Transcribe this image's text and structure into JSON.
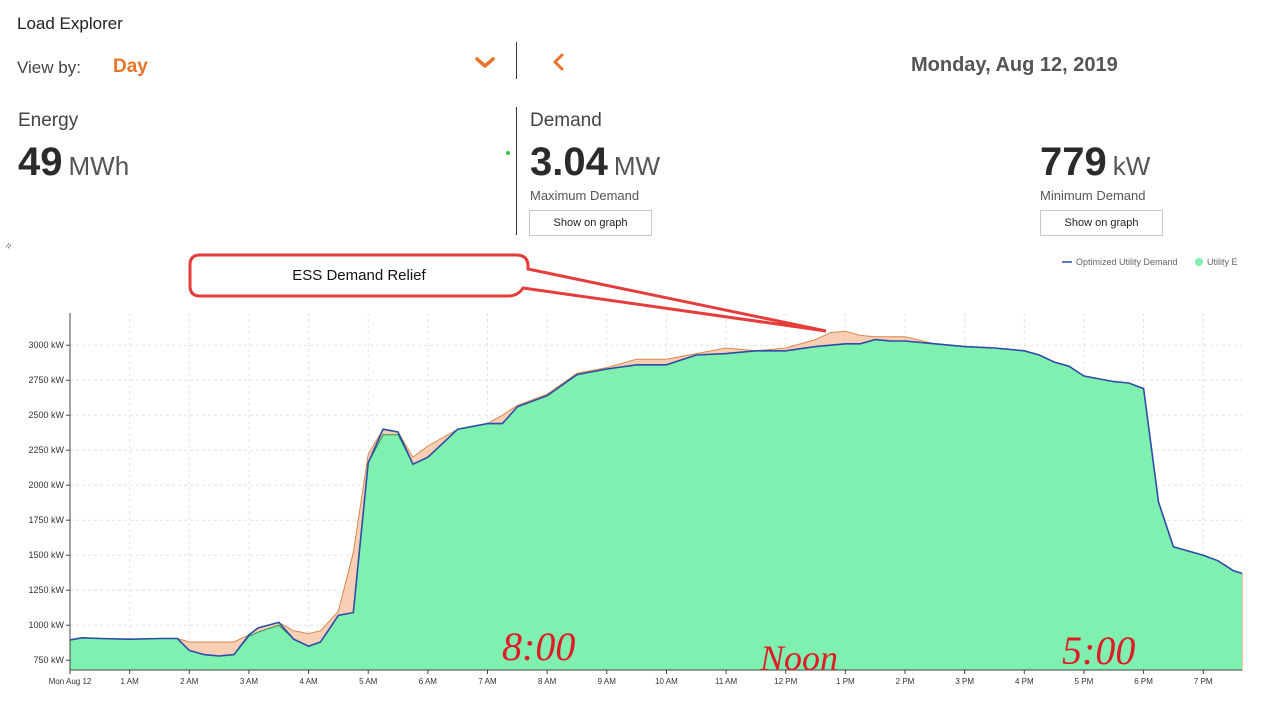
{
  "header": {
    "title": "Load Explorer",
    "view_by_label": "View by:",
    "view_by_value": "Day",
    "date": "Monday, Aug 12, 2019"
  },
  "energy": {
    "label": "Energy",
    "value": "49",
    "unit": "MWh"
  },
  "demand": {
    "label": "Demand",
    "max_value": "3.04",
    "max_unit": "MW",
    "max_label": "Maximum Demand",
    "min_value": "779",
    "min_unit": "kW",
    "min_label": "Minimum Demand",
    "show_on_graph_label": "Show on graph"
  },
  "side_glyph": "≈",
  "colors": {
    "accent": "#e8742a",
    "utility_fill": "#80f0b0",
    "utility_line": "#2f8f4f",
    "optimized_line": "#2d4ea8",
    "relief_fill": "#f8cfb4",
    "relief_line": "#d98850",
    "callout_border": "#e53c3c"
  },
  "chart_data": {
    "type": "area",
    "title": "",
    "xlabel": "",
    "ylabel": "",
    "y_unit": "kW",
    "ylim": [
      680,
      3230
    ],
    "y_ticks": [
      750,
      1000,
      1250,
      1500,
      1750,
      2000,
      2250,
      2500,
      2750,
      3000
    ],
    "y_tick_labels": [
      "750 kW",
      "1000 kW",
      "1250 kW",
      "1500 kW",
      "1750 kW",
      "2000 kW",
      "2250 kW",
      "2500 kW",
      "2750 kW",
      "3000 kW"
    ],
    "x_hours_range": [
      0,
      19.65
    ],
    "x_ticks": [
      0,
      1,
      2,
      3,
      4,
      5,
      6,
      7,
      8,
      9,
      10,
      11,
      12,
      13,
      14,
      15,
      16,
      17,
      18,
      19
    ],
    "x_tick_labels": [
      "Mon Aug 12",
      "1 AM",
      "2 AM",
      "3 AM",
      "4 AM",
      "5 AM",
      "6 AM",
      "7 AM",
      "8 AM",
      "9 AM",
      "10 AM",
      "11 AM",
      "12 PM",
      "1 PM",
      "2 PM",
      "3 PM",
      "4 PM",
      "5 PM",
      "6 PM",
      "7 PM"
    ],
    "grid": true,
    "legend_position": "top-right",
    "legend": [
      "Optimized Utility Demand",
      "Utility E"
    ],
    "series": [
      {
        "name": "Utility E",
        "x": [
          0,
          0.2,
          0.5,
          1,
          1.5,
          1.8,
          2,
          2.25,
          2.5,
          2.75,
          3,
          3.15,
          3.5,
          3.75,
          4,
          4.2,
          4.5,
          4.75,
          5,
          5.25,
          5.5,
          5.75,
          6,
          6.5,
          7,
          7.25,
          7.5,
          8,
          8.5,
          9,
          9.5,
          10,
          10.5,
          11,
          11.5,
          12,
          12.5,
          12.75,
          13,
          13.25,
          13.5,
          13.75,
          14,
          14.5,
          15,
          15.5,
          16,
          16.25,
          16.5,
          16.75,
          17,
          17.5,
          17.75,
          18,
          18.25,
          18.5,
          19,
          19.25,
          19.5,
          19.65
        ],
        "values": [
          895,
          910,
          905,
          900,
          905,
          905,
          880,
          880,
          880,
          880,
          920,
          950,
          1000,
          960,
          940,
          960,
          1100,
          1520,
          2220,
          2360,
          2360,
          2200,
          2280,
          2400,
          2440,
          2500,
          2570,
          2650,
          2800,
          2840,
          2900,
          2900,
          2940,
          2980,
          2960,
          2980,
          3040,
          3090,
          3100,
          3070,
          3060,
          3060,
          3060,
          3010,
          2990,
          2980,
          2960,
          2930,
          2880,
          2850,
          2780,
          2740,
          2730,
          2690,
          1880,
          1560,
          1500,
          1460,
          1390,
          1370
        ]
      },
      {
        "name": "Optimized Utility Demand",
        "x": [
          0,
          0.2,
          0.5,
          1,
          1.5,
          1.8,
          2,
          2.25,
          2.5,
          2.75,
          3,
          3.15,
          3.5,
          3.75,
          4,
          4.2,
          4.5,
          4.75,
          5,
          5.25,
          5.5,
          5.75,
          6,
          6.5,
          7,
          7.25,
          7.5,
          8,
          8.5,
          9,
          9.5,
          10,
          10.5,
          11,
          11.5,
          12,
          12.5,
          12.75,
          13,
          13.25,
          13.5,
          13.75,
          14,
          14.5,
          15,
          15.5,
          16,
          16.25,
          16.5,
          16.75,
          17,
          17.5,
          17.75,
          18,
          18.25,
          18.5,
          19,
          19.25,
          19.5,
          19.65
        ],
        "values": [
          895,
          910,
          905,
          900,
          905,
          905,
          820,
          790,
          780,
          790,
          930,
          980,
          1020,
          900,
          850,
          880,
          1070,
          1090,
          2160,
          2400,
          2380,
          2150,
          2200,
          2400,
          2440,
          2440,
          2560,
          2640,
          2790,
          2830,
          2860,
          2860,
          2930,
          2940,
          2960,
          2960,
          2990,
          3000,
          3010,
          3010,
          3040,
          3030,
          3030,
          3010,
          2990,
          2980,
          2960,
          2930,
          2880,
          2850,
          2780,
          2740,
          2730,
          2690,
          1880,
          1560,
          1500,
          1460,
          1390,
          1370
        ]
      }
    ],
    "annotations": {
      "callout": "ESS Demand Relief",
      "handwritten": [
        "8:00",
        "Noon",
        "5:00"
      ]
    }
  }
}
